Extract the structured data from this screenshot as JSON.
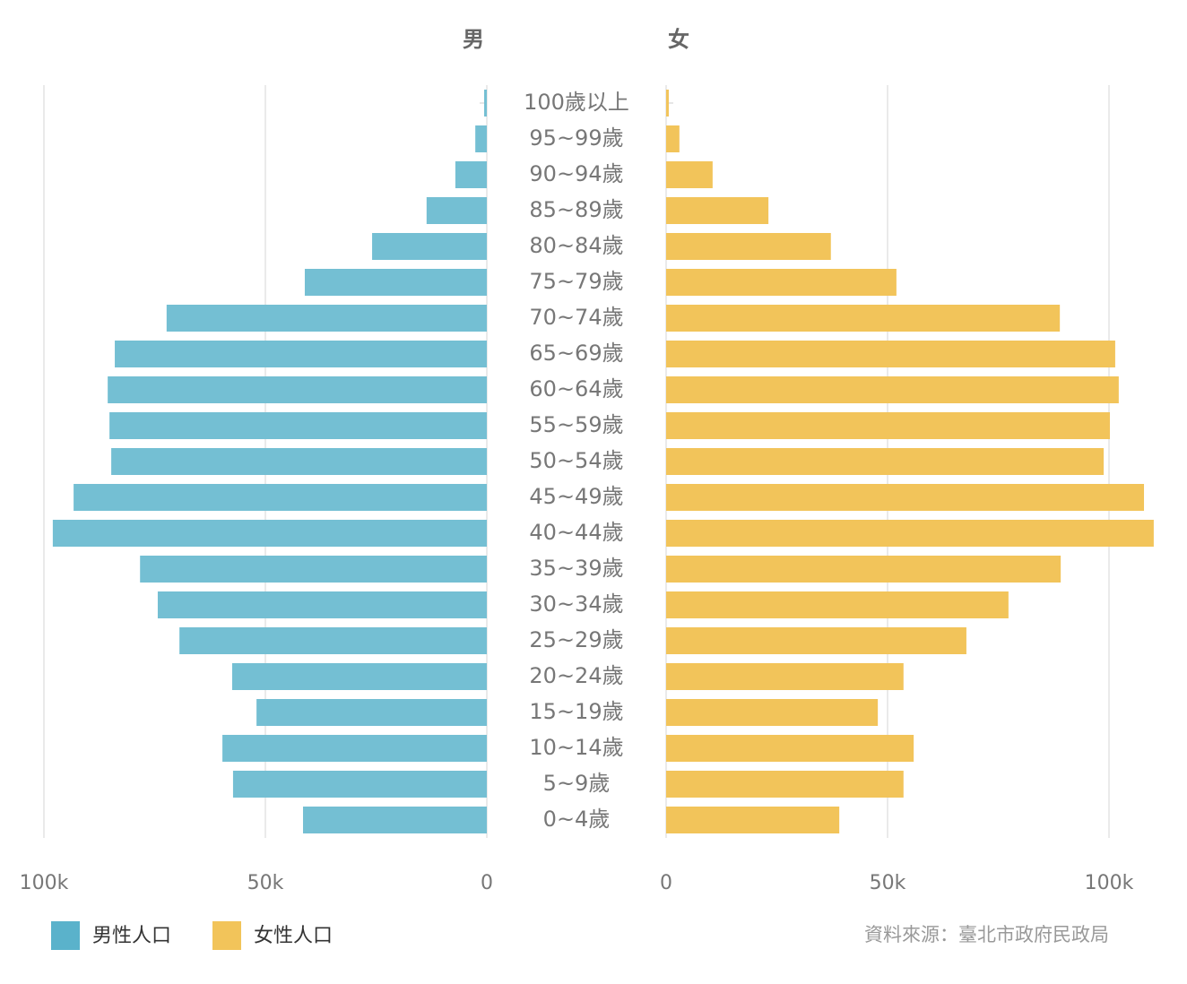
{
  "chart_data": {
    "type": "pyramid",
    "side_labels": [
      "男",
      "女"
    ],
    "categories": [
      "100歲以上",
      "95~99歲",
      "90~94歲",
      "85~89歲",
      "80~84歲",
      "75~79歲",
      "70~74歲",
      "65~69歲",
      "60~64歲",
      "55~59歲",
      "50~54歲",
      "45~49歲",
      "40~44歲",
      "35~39歲",
      "30~34歲",
      "25~29歲",
      "20~24歲",
      "15~19歲",
      "10~14歲",
      "5~9歲",
      "0~4歲"
    ],
    "series": [
      {
        "name": "男性人口",
        "color": "#74bfd3",
        "legend_color": "#5ab2cb",
        "side": "left",
        "values": [
          600,
          2600,
          7100,
          13600,
          25900,
          41100,
          72300,
          84000,
          85600,
          85200,
          84800,
          93300,
          98000,
          78300,
          74300,
          69400,
          57500,
          52000,
          59700,
          57300,
          41500
        ]
      },
      {
        "name": "女性人口",
        "color": "#f2c45a",
        "legend_color": "#f2c45a",
        "side": "right",
        "values": [
          600,
          3000,
          10500,
          23100,
          37200,
          52000,
          88900,
          101400,
          102200,
          100200,
          98800,
          107900,
          110100,
          89100,
          77300,
          67800,
          53600,
          47800,
          55900,
          53600,
          39100
        ]
      }
    ],
    "xlim": [
      0,
      100000
    ],
    "xticks": [
      0,
      {
        "value": 50000,
        "label": "50k"
      },
      {
        "value": 100000,
        "label": "100k"
      }
    ],
    "grid": true,
    "source": "資料來源：臺北市政府民政局"
  }
}
